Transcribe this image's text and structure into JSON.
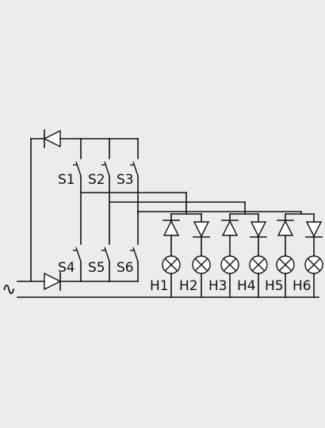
{
  "diagram": {
    "source_symbol": "∿",
    "switches": {
      "top": [
        "S1",
        "S2",
        "S3"
      ],
      "bottom": [
        "S4",
        "S5",
        "S6"
      ]
    },
    "lamps": [
      "H1",
      "H2",
      "H3",
      "H4",
      "H5",
      "H6"
    ]
  },
  "colors": {
    "background": "#ececec",
    "line": "#111111",
    "fill": "#ffffff"
  }
}
